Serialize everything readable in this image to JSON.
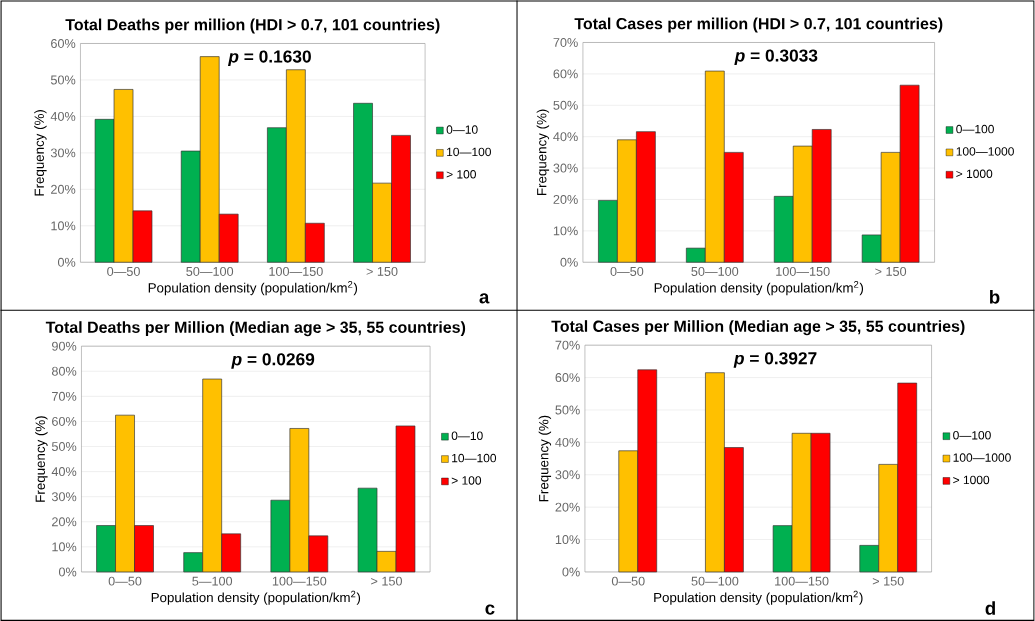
{
  "chart_data": [
    {
      "type": "bar",
      "title": "Total Deaths per million (HDI > 0.7, 101 countries)",
      "xlabel": "Population density (population/km$^{2}$)",
      "ylabel": "Frequency (%)",
      "categories": [
        "0—50",
        "50—100",
        "100—150",
        "> 150"
      ],
      "series": [
        {
          "name": "0—10",
          "color": "#00b050",
          "values": [
            39.2,
            30.5,
            36.9,
            43.6
          ]
        },
        {
          "name": "10—100",
          "color": "#ffc000",
          "values": [
            47.4,
            56.4,
            52.8,
            21.7
          ]
        },
        {
          "name": "> 100",
          "color": "#ff0000",
          "values": [
            14.1,
            13.2,
            10.7,
            34.8
          ]
        }
      ],
      "ylim": [
        0,
        60
      ],
      "yticks": [
        {
          "value": 0,
          "label": "0%"
        },
        {
          "value": 10,
          "label": "10%"
        },
        {
          "value": 20,
          "label": "20%"
        },
        {
          "value": 30,
          "label": "30%"
        },
        {
          "value": 40,
          "label": "40%"
        },
        {
          "value": 50,
          "label": "50%"
        },
        {
          "value": 60,
          "label": "60%"
        }
      ],
      "grid": "y",
      "legend": "right",
      "annotations": [
        "*p* = 0.1630",
        "a"
      ]
    },
    {
      "type": "bar",
      "title": "Total Cases per million (HDI > 0.7, 101 countries)",
      "xlabel": "Population density (population/km$^{2}$)",
      "ylabel": "Frequency (%)",
      "categories": [
        "0—50",
        "50—100",
        "100—150",
        "> 150"
      ],
      "series": [
        {
          "name": "0—100",
          "color": "#00b050",
          "values": [
            19.7,
            4.5,
            21.0,
            8.7
          ]
        },
        {
          "name": "100—1000",
          "color": "#ffc000",
          "values": [
            39.0,
            60.9,
            37.0,
            35.0
          ]
        },
        {
          "name": "> 1000",
          "color": "#ff0000",
          "values": [
            41.6,
            35.0,
            42.3,
            56.4
          ]
        }
      ],
      "ylim": [
        0,
        70
      ],
      "yticks": [
        {
          "value": 0,
          "label": "0%"
        },
        {
          "value": 10,
          "label": "10%"
        },
        {
          "value": 20,
          "label": "20%"
        },
        {
          "value": 30,
          "label": "30%"
        },
        {
          "value": 40,
          "label": "40%"
        },
        {
          "value": 50,
          "label": "50%"
        },
        {
          "value": 60,
          "label": "60%"
        },
        {
          "value": 70,
          "label": "70%"
        }
      ],
      "grid": "y",
      "legend": "right",
      "annotations": [
        "*p* = 0.3033",
        "b"
      ]
    },
    {
      "type": "bar",
      "title": "Total Deaths per Million (Median age > 35, 55 countries)",
      "xlabel": "Population density (population/km$^{2}$)",
      "ylabel": "Frequency (%)",
      "categories": [
        "0—50",
        "5—100",
        "100—150",
        "> 150"
      ],
      "series": [
        {
          "name": "0—10",
          "color": "#00b050",
          "values": [
            18.5,
            7.7,
            28.6,
            33.4
          ]
        },
        {
          "name": "10—100",
          "color": "#ffc000",
          "values": [
            62.5,
            76.9,
            57.2,
            8.2
          ]
        },
        {
          "name": "> 100",
          "color": "#ff0000",
          "values": [
            18.5,
            15.2,
            14.4,
            58.2
          ]
        }
      ],
      "ylim": [
        0,
        90
      ],
      "yticks": [
        {
          "value": 0,
          "label": "0%"
        },
        {
          "value": 10,
          "label": "10%"
        },
        {
          "value": 20,
          "label": "20%"
        },
        {
          "value": 30,
          "label": "30%"
        },
        {
          "value": 40,
          "label": "40%"
        },
        {
          "value": 50,
          "label": "50%"
        },
        {
          "value": 60,
          "label": "60%"
        },
        {
          "value": 70,
          "label": "70%"
        },
        {
          "value": 80,
          "label": "80%"
        },
        {
          "value": 90,
          "label": "90%"
        }
      ],
      "grid": "y",
      "legend": "right",
      "annotations": [
        "*p* = 0.0269",
        "c"
      ]
    },
    {
      "type": "bar",
      "title": "Total Cases per Million (Median age > 35, 55 countries)",
      "xlabel": "Population density (population/km$^{2}$)",
      "ylabel": "Frequency (%)",
      "categories": [
        "0—50",
        "50—100",
        "100—150",
        "> 150"
      ],
      "series": [
        {
          "name": "0—100",
          "color": "#00b050",
          "values": [
            null,
            null,
            14.3,
            8.2
          ]
        },
        {
          "name": "100—1000",
          "color": "#ffc000",
          "values": [
            37.4,
            61.5,
            42.8,
            33.2
          ]
        },
        {
          "name": "> 1000",
          "color": "#ff0000",
          "values": [
            62.4,
            38.4,
            42.8,
            58.3
          ]
        }
      ],
      "ylim": [
        0,
        70
      ],
      "yticks": [
        {
          "value": 0,
          "label": "0%"
        },
        {
          "value": 10,
          "label": "10%"
        },
        {
          "value": 20,
          "label": "20%"
        },
        {
          "value": 30,
          "label": "30%"
        },
        {
          "value": 40,
          "label": "40%"
        },
        {
          "value": 50,
          "label": "50%"
        },
        {
          "value": 60,
          "label": "60%"
        },
        {
          "value": 70,
          "label": "70%"
        }
      ],
      "grid": "y",
      "legend": "right",
      "annotations": [
        "*p* = 0.3927",
        "d"
      ]
    }
  ]
}
